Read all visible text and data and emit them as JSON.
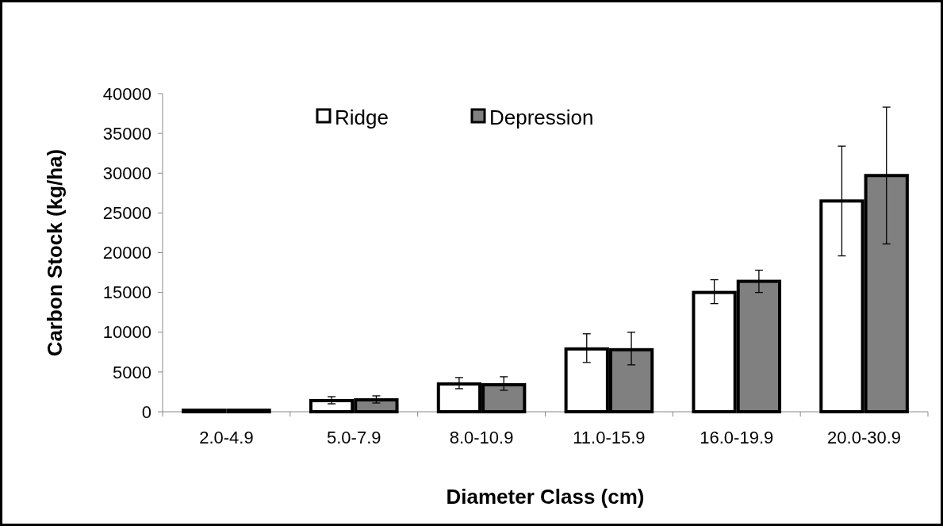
{
  "chart_data": {
    "type": "bar",
    "xlabel": "Diameter  Class (cm)",
    "ylabel": "Carbon Stock (kg/ha)",
    "categories": [
      "2.0-4.9",
      "5.0-7.9",
      "8.0-10.9",
      "11.0-15.9",
      "16.0-19.9",
      "20.0-30.9"
    ],
    "series": [
      {
        "name": "Ridge",
        "color": "#ffffff",
        "values": [
          200,
          1400,
          3500,
          7900,
          15000,
          26500
        ],
        "errors": [
          null,
          [
            1000,
            1900
          ],
          [
            2900,
            4300
          ],
          [
            6200,
            9800
          ],
          [
            13600,
            16600
          ],
          [
            19600,
            33400
          ]
        ]
      },
      {
        "name": "Depression",
        "color": "#808080",
        "values": [
          200,
          1500,
          3400,
          7800,
          16400,
          29700
        ],
        "errors": [
          null,
          [
            1100,
            2000
          ],
          [
            2700,
            4400
          ],
          [
            5900,
            10000
          ],
          [
            15000,
            17800
          ],
          [
            21100,
            38300
          ]
        ]
      }
    ],
    "ylim": [
      0,
      40000
    ],
    "yticks": [
      0,
      5000,
      10000,
      15000,
      20000,
      25000,
      30000,
      35000,
      40000
    ],
    "legend": "top",
    "grid": false
  }
}
